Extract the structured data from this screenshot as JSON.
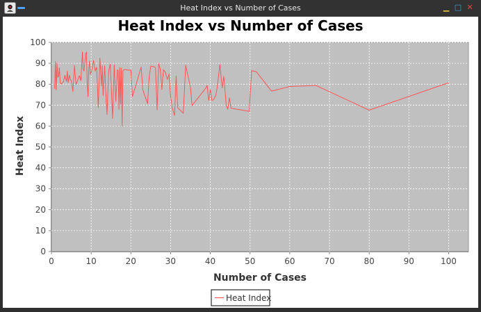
{
  "window": {
    "title": "Heat Index vs Number of Cases",
    "app_icon": "java-duke-icon",
    "menu_icon": "window-menu-icon",
    "controls": {
      "minimize_icon": "minimize-icon",
      "maximize_icon": "maximize-icon",
      "close_icon": "close-icon"
    }
  },
  "colors": {
    "plot_background": "#c0c0c0",
    "gridline": "#ffffff",
    "series": "#ff5555",
    "chart_background": "#ffffff"
  },
  "chart_data": {
    "type": "line",
    "title": "Heat Index vs Number of Cases",
    "xlabel": "Number of Cases",
    "ylabel": "Heat Index",
    "xlim": [
      0,
      105
    ],
    "ylim": [
      0,
      100
    ],
    "xticks": [
      0,
      10,
      20,
      30,
      40,
      50,
      60,
      70,
      80,
      90,
      100
    ],
    "yticks": [
      0,
      10,
      20,
      30,
      40,
      50,
      60,
      70,
      80,
      90,
      100
    ],
    "grid": true,
    "legend": "bottom-center",
    "series": [
      {
        "name": "Heat Index",
        "color": "#ff5555",
        "x": [
          0.8,
          1.0,
          1.2,
          1.4,
          1.6,
          1.8,
          2.0,
          2.2,
          2.4,
          2.6,
          2.8,
          3.0,
          3.4,
          3.8,
          4.0,
          4.2,
          4.5,
          4.8,
          5.0,
          5.4,
          5.8,
          6.2,
          6.6,
          7.0,
          7.4,
          7.8,
          8.0,
          8.2,
          8.4,
          8.6,
          8.8,
          9.0,
          9.2,
          9.4,
          9.6,
          9.8,
          10.2,
          10.6,
          11.0,
          11.4,
          11.8,
          12.2,
          12.6,
          12.8,
          13.0,
          13.4,
          13.8,
          14.0,
          14.4,
          14.8,
          15.0,
          15.4,
          15.8,
          16.2,
          16.6,
          16.8,
          17.0,
          17.2,
          17.4,
          17.6,
          17.8,
          18.0,
          18.4,
          20.0,
          20.4,
          22.6,
          23.0,
          24.2,
          24.6,
          25.0,
          25.6,
          26.2,
          26.6,
          27.0,
          27.4,
          27.8,
          28.2,
          28.6,
          29.2,
          29.6,
          30.0,
          30.4,
          31.0,
          31.4,
          31.8,
          33.2,
          33.8,
          35.0,
          35.4,
          38.8,
          39.2,
          39.6,
          40.0,
          40.4,
          40.8,
          41.4,
          41.8,
          42.4,
          43.0,
          43.4,
          44.0,
          44.4,
          44.8,
          45.2,
          49.8,
          50.4,
          51.6,
          55.4,
          60.0,
          66.6,
          80.0,
          100.0
        ],
        "values": [
          77.8,
          90.8,
          77.3,
          90.0,
          83.3,
          83.9,
          87.9,
          80.5,
          80.2,
          80.2,
          80.9,
          81.0,
          84.3,
          81.3,
          86.3,
          80.7,
          84.3,
          82.0,
          81.7,
          76.5,
          89.0,
          79.8,
          81.9,
          84.1,
          81.6,
          95.3,
          87.3,
          86.3,
          90.3,
          94.5,
          95.4,
          81.2,
          74.1,
          87.2,
          91.1,
          84.7,
          87.0,
          91.3,
          86.4,
          88.1,
          68.8,
          92.5,
          79.2,
          88.8,
          74.6,
          88.8,
          71.0,
          65.5,
          86.2,
          89.6,
          82.0,
          63.6,
          89.2,
          71.8,
          86.9,
          86.5,
          68.0,
          87.9,
          70.5,
          87.7,
          60.0,
          86.5,
          87.0,
          86.6,
          74.1,
          88.2,
          77.4,
          70.7,
          83.5,
          88.6,
          88.5,
          88.0,
          67.7,
          89.8,
          87.1,
          77.5,
          86.9,
          86.0,
          82.3,
          84.9,
          74.4,
          68.8,
          65.1,
          84.0,
          68.7,
          66.1,
          89.1,
          78.5,
          69.8,
          78.0,
          79.4,
          72.3,
          77.3,
          72.3,
          72.5,
          74.8,
          79.6,
          89.4,
          78.2,
          83.8,
          70.0,
          68.0,
          73.5,
          68.5,
          67.0,
          86.5,
          85.9,
          76.7,
          78.9,
          79.4,
          67.6,
          80.7
        ]
      }
    ]
  }
}
